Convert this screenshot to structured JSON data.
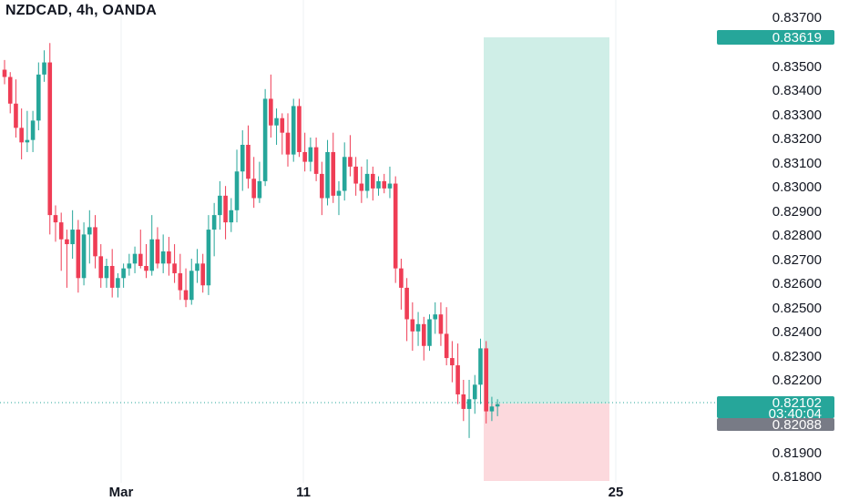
{
  "header": {
    "title": "NZDCAD, 4h, OANDA"
  },
  "colors": {
    "up": "#26a69a",
    "down": "#ef3d55",
    "profit_zone": "#cfeee7",
    "loss_zone": "#fcd9dd",
    "price_line": "#26a69a",
    "stop_label": "#787b86",
    "grid": "#eef0f3",
    "text": "#131722"
  },
  "price_axis": {
    "ticks": [
      "0.83700",
      "0.83500",
      "0.83400",
      "0.83300",
      "0.83200",
      "0.83100",
      "0.83000",
      "0.82900",
      "0.82800",
      "0.82700",
      "0.82600",
      "0.82500",
      "0.82400",
      "0.82300",
      "0.82200",
      "0.81900",
      "0.81800"
    ],
    "current_price": "0.82102",
    "countdown": "03:40:04",
    "target_label": "0.83619",
    "stop_label": "0.82088"
  },
  "time_axis": {
    "labels": [
      "Mar",
      "11",
      "25"
    ]
  },
  "chart_data": {
    "type": "candlestick",
    "symbol": "NZDCAD",
    "interval": "4h",
    "exchange": "OANDA",
    "ylim": [
      0.8177,
      0.8375
    ],
    "x_labels": [
      "Mar",
      "11",
      "25"
    ],
    "candles": [
      [
        0.8348,
        0.8352,
        0.8342,
        0.8345
      ],
      [
        0.8345,
        0.8347,
        0.833,
        0.8334
      ],
      [
        0.8334,
        0.8344,
        0.832,
        0.8324
      ],
      [
        0.8324,
        0.8332,
        0.8311,
        0.8318
      ],
      [
        0.8318,
        0.8331,
        0.8314,
        0.8319
      ],
      [
        0.8319,
        0.8331,
        0.8314,
        0.8327
      ],
      [
        0.8327,
        0.8351,
        0.8323,
        0.8346
      ],
      [
        0.8346,
        0.8356,
        0.8343,
        0.8351
      ],
      [
        0.8351,
        0.8359,
        0.828,
        0.8288
      ],
      [
        0.8288,
        0.8292,
        0.8277,
        0.8285
      ],
      [
        0.8285,
        0.8289,
        0.8265,
        0.8278
      ],
      [
        0.8278,
        0.8282,
        0.8258,
        0.8276
      ],
      [
        0.8276,
        0.829,
        0.827,
        0.8282
      ],
      [
        0.8282,
        0.8286,
        0.8256,
        0.8262
      ],
      [
        0.8262,
        0.8285,
        0.8259,
        0.828
      ],
      [
        0.828,
        0.829,
        0.8268,
        0.8283
      ],
      [
        0.8283,
        0.8288,
        0.8266,
        0.8271
      ],
      [
        0.8271,
        0.8276,
        0.8258,
        0.8262
      ],
      [
        0.8262,
        0.827,
        0.8258,
        0.8267
      ],
      [
        0.8267,
        0.8274,
        0.8254,
        0.8258
      ],
      [
        0.8258,
        0.8264,
        0.8254,
        0.8262
      ],
      [
        0.8262,
        0.8268,
        0.8258,
        0.8266
      ],
      [
        0.8266,
        0.8272,
        0.8263,
        0.8268
      ],
      [
        0.8268,
        0.8275,
        0.8264,
        0.8272
      ],
      [
        0.8272,
        0.8282,
        0.8266,
        0.8267
      ],
      [
        0.8267,
        0.8276,
        0.8262,
        0.8265
      ],
      [
        0.8265,
        0.8288,
        0.8263,
        0.8278
      ],
      [
        0.8278,
        0.8283,
        0.8266,
        0.8268
      ],
      [
        0.8268,
        0.828,
        0.8264,
        0.8273
      ],
      [
        0.8273,
        0.8279,
        0.8263,
        0.8268
      ],
      [
        0.8268,
        0.8276,
        0.826,
        0.8264
      ],
      [
        0.8264,
        0.8272,
        0.8253,
        0.8257
      ],
      [
        0.8257,
        0.8266,
        0.825,
        0.8253
      ],
      [
        0.8253,
        0.827,
        0.8251,
        0.8265
      ],
      [
        0.8265,
        0.8274,
        0.826,
        0.8268
      ],
      [
        0.8268,
        0.8272,
        0.8256,
        0.8259
      ],
      [
        0.8259,
        0.8288,
        0.8255,
        0.8282
      ],
      [
        0.8282,
        0.8293,
        0.8271,
        0.8288
      ],
      [
        0.8288,
        0.8302,
        0.8282,
        0.8296
      ],
      [
        0.8296,
        0.83,
        0.8278,
        0.8285
      ],
      [
        0.8285,
        0.8295,
        0.8281,
        0.829
      ],
      [
        0.829,
        0.8315,
        0.8285,
        0.8306
      ],
      [
        0.8306,
        0.8323,
        0.8298,
        0.8317
      ],
      [
        0.8317,
        0.8325,
        0.8299,
        0.8303
      ],
      [
        0.8303,
        0.8312,
        0.8291,
        0.8295
      ],
      [
        0.8295,
        0.831,
        0.8293,
        0.8302
      ],
      [
        0.8302,
        0.834,
        0.83,
        0.8336
      ],
      [
        0.8336,
        0.8346,
        0.832,
        0.8325
      ],
      [
        0.8325,
        0.8332,
        0.8317,
        0.8328
      ],
      [
        0.8328,
        0.833,
        0.8313,
        0.8322
      ],
      [
        0.8322,
        0.833,
        0.8308,
        0.8313
      ],
      [
        0.8313,
        0.8336,
        0.831,
        0.8333
      ],
      [
        0.8333,
        0.8336,
        0.8312,
        0.8314
      ],
      [
        0.8314,
        0.8322,
        0.8306,
        0.831
      ],
      [
        0.831,
        0.832,
        0.8306,
        0.8316
      ],
      [
        0.8316,
        0.832,
        0.8302,
        0.8305
      ],
      [
        0.8305,
        0.831,
        0.8288,
        0.8295
      ],
      [
        0.8295,
        0.8319,
        0.8292,
        0.8314
      ],
      [
        0.8314,
        0.8322,
        0.8293,
        0.8296
      ],
      [
        0.8296,
        0.8302,
        0.8288,
        0.8298
      ],
      [
        0.8298,
        0.8318,
        0.8294,
        0.8312
      ],
      [
        0.8312,
        0.8321,
        0.8304,
        0.8308
      ],
      [
        0.8308,
        0.8312,
        0.8296,
        0.8301
      ],
      [
        0.8301,
        0.8308,
        0.8293,
        0.8298
      ],
      [
        0.8298,
        0.8311,
        0.8295,
        0.8305
      ],
      [
        0.8305,
        0.8308,
        0.8294,
        0.8299
      ],
      [
        0.8299,
        0.8304,
        0.8296,
        0.8302
      ],
      [
        0.8302,
        0.8305,
        0.8297,
        0.8299
      ],
      [
        0.8299,
        0.8308,
        0.8295,
        0.8301
      ],
      [
        0.8301,
        0.8304,
        0.826,
        0.8266
      ],
      [
        0.8266,
        0.827,
        0.8249,
        0.8258
      ],
      [
        0.8258,
        0.8262,
        0.8236,
        0.8245
      ],
      [
        0.8245,
        0.8252,
        0.8232,
        0.824
      ],
      [
        0.824,
        0.8248,
        0.8234,
        0.8243
      ],
      [
        0.8243,
        0.8246,
        0.8228,
        0.8234
      ],
      [
        0.8234,
        0.8247,
        0.8232,
        0.8245
      ],
      [
        0.8245,
        0.8252,
        0.8239,
        0.8247
      ],
      [
        0.8247,
        0.8252,
        0.8234,
        0.8239
      ],
      [
        0.8239,
        0.825,
        0.8226,
        0.8229
      ],
      [
        0.8229,
        0.8236,
        0.8219,
        0.8226
      ],
      [
        0.8226,
        0.8235,
        0.821,
        0.8214
      ],
      [
        0.8214,
        0.822,
        0.8203,
        0.8208
      ],
      [
        0.8208,
        0.822,
        0.8196,
        0.8212
      ],
      [
        0.8212,
        0.8222,
        0.8206,
        0.8218
      ],
      [
        0.8218,
        0.8237,
        0.821,
        0.8233
      ],
      [
        0.8233,
        0.8236,
        0.8202,
        0.8207
      ],
      [
        0.8207,
        0.8213,
        0.8203,
        0.8209
      ],
      [
        0.8209,
        0.8212,
        0.8205,
        0.821
      ]
    ],
    "position": {
      "type": "long",
      "target": 0.83619,
      "stop": 0.82088,
      "entry": 0.82102
    }
  }
}
